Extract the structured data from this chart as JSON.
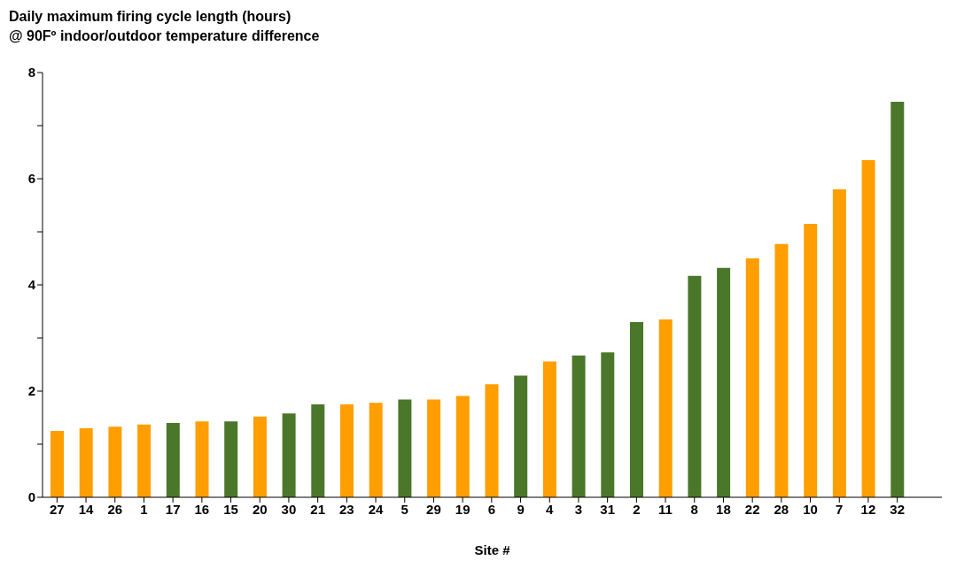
{
  "chart_data": {
    "type": "bar",
    "title": "Daily maximum firing cycle length (hours)",
    "subtitle": "@ 90Fº indoor/outdoor temperature difference",
    "xlabel": "Site #",
    "categories": [
      "27",
      "14",
      "26",
      "1",
      "17",
      "16",
      "15",
      "20",
      "30",
      "21",
      "23",
      "24",
      "5",
      "29",
      "19",
      "6",
      "9",
      "4",
      "3",
      "31",
      "2",
      "11",
      "8",
      "18",
      "22",
      "28",
      "10",
      "7",
      "12",
      "32"
    ],
    "values": [
      1.25,
      1.3,
      1.33,
      1.37,
      1.4,
      1.43,
      1.43,
      1.52,
      1.58,
      1.75,
      1.75,
      1.78,
      1.84,
      1.84,
      1.91,
      2.13,
      2.29,
      2.56,
      2.67,
      2.73,
      3.3,
      3.35,
      4.17,
      4.32,
      4.5,
      4.77,
      5.15,
      5.8,
      6.35,
      7.45
    ],
    "colors": [
      "#ff9e00",
      "#ff9e00",
      "#ff9e00",
      "#ff9e00",
      "#4a7729",
      "#ff9e00",
      "#4a7729",
      "#ff9e00",
      "#4a7729",
      "#4a7729",
      "#ff9e00",
      "#ff9e00",
      "#4a7729",
      "#ff9e00",
      "#ff9e00",
      "#ff9e00",
      "#4a7729",
      "#ff9e00",
      "#4a7729",
      "#4a7729",
      "#4a7729",
      "#ff9e00",
      "#4a7729",
      "#4a7729",
      "#ff9e00",
      "#ff9e00",
      "#ff9e00",
      "#ff9e00",
      "#ff9e00",
      "#4a7729"
    ],
    "ylim": [
      0,
      8
    ],
    "yticks": [
      0,
      {
        "value": 1,
        "label": null
      },
      2,
      {
        "value": 3,
        "label": null
      },
      4,
      {
        "value": 5,
        "label": null
      },
      6,
      {
        "value": 7,
        "label": null
      },
      8
    ],
    "grid": false,
    "legend": false
  }
}
